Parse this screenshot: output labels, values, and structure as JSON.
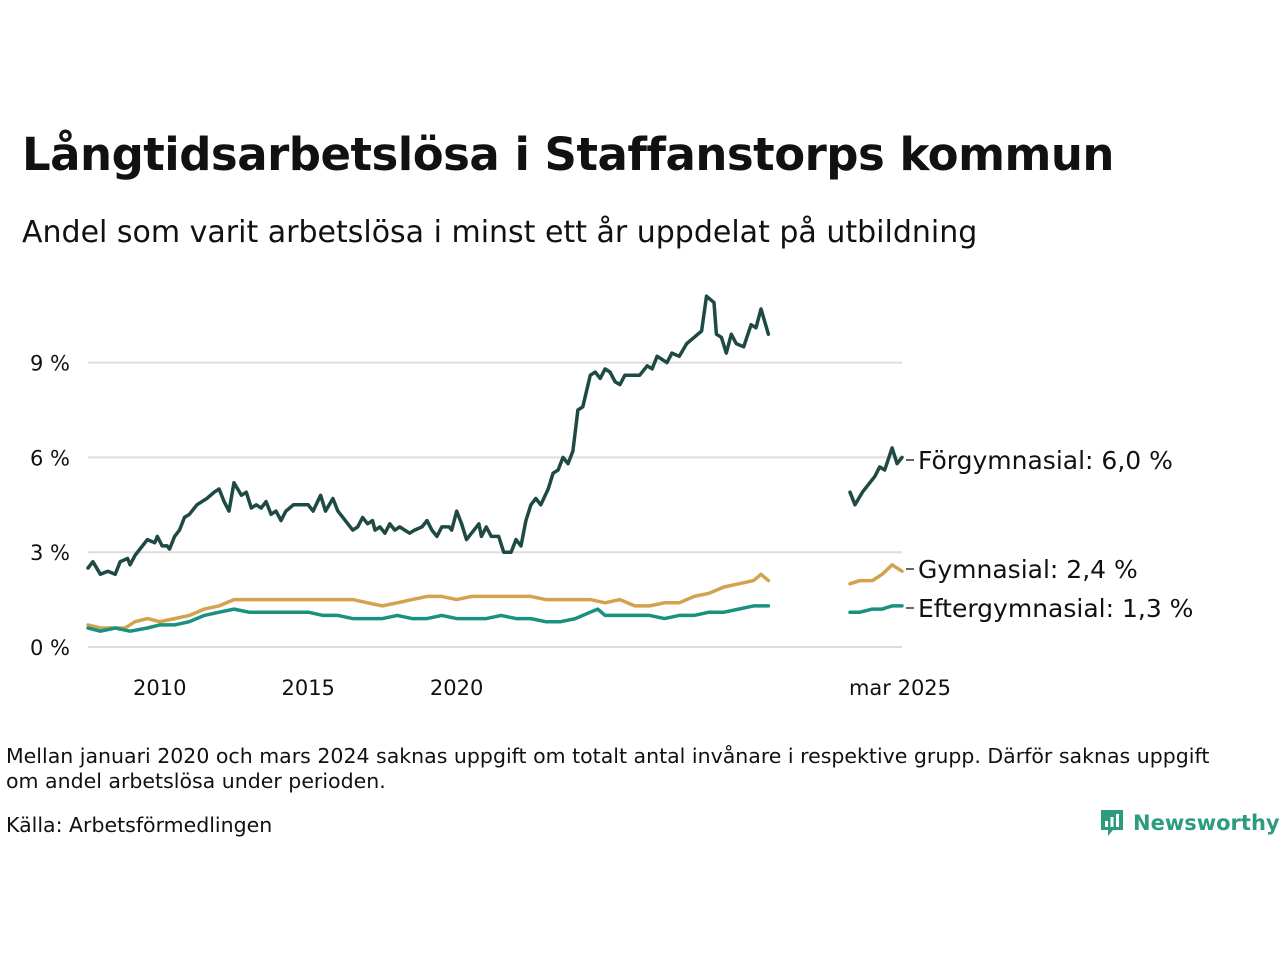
{
  "header": {
    "title": "Långtidsarbetslösa i Staffanstorps kommun",
    "subtitle": "Andel som varit arbetslösa i minst ett år uppdelat på utbildning"
  },
  "footer": {
    "note": "Mellan januari 2020 och mars 2024 saknas uppgift om totalt antal invånare i respektive grupp. Därför saknas uppgift om andel arbetslösa under perioden.",
    "source": "Källa: Arbetsförmedlingen",
    "logo_text": "Newsworthy",
    "logo_color": "#2c9c7c"
  },
  "chart_data": {
    "type": "line",
    "x_ticks": [
      "2010",
      "2015",
      "2020",
      "mar 2025"
    ],
    "y_ticks": [
      "0 %",
      "3 %",
      "6 %",
      "9 %"
    ],
    "y_tick_values": [
      0,
      3,
      6,
      9
    ],
    "ylim": [
      0,
      11.5
    ],
    "grid": true,
    "series": [
      {
        "name": "Förgymnasial",
        "end_label": "Förgymnasial: 6,0 %",
        "color": "#1f4a44",
        "points": [
          [
            "2008-01",
            2.5
          ],
          [
            "2008-03",
            2.7
          ],
          [
            "2008-06",
            2.3
          ],
          [
            "2008-09",
            2.4
          ],
          [
            "2008-12",
            2.3
          ],
          [
            "2009-02",
            2.7
          ],
          [
            "2009-05",
            2.8
          ],
          [
            "2009-06",
            2.6
          ],
          [
            "2009-08",
            2.9
          ],
          [
            "2009-10",
            3.1
          ],
          [
            "2010-01",
            3.4
          ],
          [
            "2010-04",
            3.3
          ],
          [
            "2010-05",
            3.5
          ],
          [
            "2010-07",
            3.2
          ],
          [
            "2010-09",
            3.2
          ],
          [
            "2010-10",
            3.1
          ],
          [
            "2010-12",
            3.5
          ],
          [
            "2011-02",
            3.7
          ],
          [
            "2011-04",
            4.1
          ],
          [
            "2011-06",
            4.2
          ],
          [
            "2011-09",
            4.5
          ],
          [
            "2012-01",
            4.7
          ],
          [
            "2012-04",
            4.9
          ],
          [
            "2012-06",
            5.0
          ],
          [
            "2012-08",
            4.6
          ],
          [
            "2012-10",
            4.3
          ],
          [
            "2012-12",
            5.2
          ],
          [
            "2013-03",
            4.8
          ],
          [
            "2013-05",
            4.9
          ],
          [
            "2013-07",
            4.4
          ],
          [
            "2013-09",
            4.5
          ],
          [
            "2013-11",
            4.4
          ],
          [
            "2014-01",
            4.6
          ],
          [
            "2014-03",
            4.2
          ],
          [
            "2014-05",
            4.3
          ],
          [
            "2014-07",
            4.0
          ],
          [
            "2014-09",
            4.3
          ],
          [
            "2014-12",
            4.5
          ],
          [
            "2015-03",
            4.5
          ],
          [
            "2015-06",
            4.5
          ],
          [
            "2015-08",
            4.3
          ],
          [
            "2015-11",
            4.8
          ],
          [
            "2016-01",
            4.3
          ],
          [
            "2016-04",
            4.7
          ],
          [
            "2016-06",
            4.3
          ],
          [
            "2016-09",
            4.0
          ],
          [
            "2016-12",
            3.7
          ],
          [
            "2017-02",
            3.8
          ],
          [
            "2017-04",
            4.1
          ],
          [
            "2017-06",
            3.9
          ],
          [
            "2017-08",
            4.0
          ],
          [
            "2017-09",
            3.7
          ],
          [
            "2017-11",
            3.8
          ],
          [
            "2018-01",
            3.6
          ],
          [
            "2018-03",
            3.9
          ],
          [
            "2018-05",
            3.7
          ],
          [
            "2018-07",
            3.8
          ],
          [
            "2018-09",
            3.7
          ],
          [
            "2018-11",
            3.6
          ],
          [
            "2019-01",
            3.7
          ],
          [
            "2019-04",
            3.8
          ],
          [
            "2019-06",
            4.0
          ],
          [
            "2019-08",
            3.7
          ],
          [
            "2019-10",
            3.5
          ],
          [
            "2019-12",
            3.8
          ],
          [
            "2020-03",
            3.8
          ],
          [
            "2020-04",
            3.7
          ],
          [
            "2020-06",
            4.3
          ],
          [
            "2020-08",
            3.9
          ],
          [
            "2020-10",
            3.4
          ],
          [
            "2021-01",
            3.7
          ],
          [
            "2021-03",
            3.9
          ],
          [
            "2021-04",
            3.5
          ],
          [
            "2021-06",
            3.8
          ],
          [
            "2021-08",
            3.5
          ],
          [
            "2021-11",
            3.5
          ],
          [
            "2022-01",
            3.0
          ],
          [
            "2022-04",
            3.0
          ],
          [
            "2022-06",
            3.4
          ],
          [
            "2022-08",
            3.2
          ],
          [
            "2022-10",
            4.0
          ],
          [
            "2022-12",
            4.5
          ],
          [
            "2023-02",
            4.7
          ],
          [
            "2023-04",
            4.5
          ],
          [
            "2023-07",
            5.0
          ],
          [
            "2023-09",
            5.5
          ],
          [
            "2023-11",
            5.6
          ],
          [
            "2024-01",
            6.0
          ],
          [
            "2024-03",
            5.8
          ],
          [
            "2024-05",
            6.2
          ],
          [
            "2024-07",
            7.5
          ],
          [
            "2024-09",
            7.6
          ],
          [
            "2024-12",
            8.6
          ],
          [
            "2025-02",
            8.7
          ],
          [
            "2025-04",
            8.5
          ],
          [
            "2025-06",
            8.8
          ],
          [
            "2025-08",
            8.7
          ],
          [
            "2025-10",
            8.4
          ],
          [
            "2025-12",
            8.3
          ],
          [
            "2026-02",
            8.6
          ],
          [
            "2026-05",
            8.6
          ],
          [
            "2026-08",
            8.6
          ],
          [
            "2026-11",
            8.9
          ],
          [
            "2027-01",
            8.8
          ],
          [
            "2027-03",
            9.2
          ],
          [
            "2027-05",
            9.1
          ],
          [
            "2027-07",
            9.0
          ],
          [
            "2027-09",
            9.3
          ],
          [
            "2027-12",
            9.2
          ],
          [
            "2028-03",
            9.6
          ],
          [
            "2028-06",
            9.8
          ],
          [
            "2028-09",
            10.0
          ],
          [
            "2028-11",
            11.1
          ],
          [
            "2029-02",
            10.9
          ],
          [
            "2029-03",
            9.9
          ],
          [
            "2029-05",
            9.8
          ],
          [
            "2029-07",
            9.3
          ],
          [
            "2029-09",
            9.9
          ],
          [
            "2029-11",
            9.6
          ],
          [
            "2030-02",
            9.5
          ],
          [
            "2030-05",
            10.2
          ],
          [
            "2030-07",
            10.1
          ],
          [
            "2030-09",
            10.7
          ],
          [
            "2030-12",
            9.9
          ],
          null,
          [
            "2033-09",
            4.9
          ],
          [
            "2033-11",
            4.5
          ],
          [
            "2034-02",
            4.9
          ],
          [
            "2034-04",
            5.1
          ],
          [
            "2034-07",
            5.4
          ],
          [
            "2034-09",
            5.7
          ],
          [
            "2034-11",
            5.6
          ],
          [
            "2035-02",
            6.3
          ],
          [
            "2035-04",
            5.8
          ],
          [
            "2035-06",
            6.0
          ]
        ]
      },
      {
        "name": "Gymnasial",
        "end_label": "Gymnasial: 2,4 %",
        "color": "#d3a24e",
        "points": [
          [
            "2008-01",
            0.7
          ],
          [
            "2008-06",
            0.6
          ],
          [
            "2008-12",
            0.6
          ],
          [
            "2009-04",
            0.6
          ],
          [
            "2009-08",
            0.8
          ],
          [
            "2010-01",
            0.9
          ],
          [
            "2010-06",
            0.8
          ],
          [
            "2010-12",
            0.9
          ],
          [
            "2011-06",
            1.0
          ],
          [
            "2011-12",
            1.2
          ],
          [
            "2012-06",
            1.3
          ],
          [
            "2012-12",
            1.5
          ],
          [
            "2013-04",
            1.5
          ],
          [
            "2013-08",
            1.5
          ],
          [
            "2014-01",
            1.5
          ],
          [
            "2014-06",
            1.5
          ],
          [
            "2014-12",
            1.5
          ],
          [
            "2015-06",
            1.5
          ],
          [
            "2015-12",
            1.5
          ],
          [
            "2016-06",
            1.5
          ],
          [
            "2016-12",
            1.5
          ],
          [
            "2017-06",
            1.4
          ],
          [
            "2017-12",
            1.3
          ],
          [
            "2018-06",
            1.4
          ],
          [
            "2018-12",
            1.5
          ],
          [
            "2019-06",
            1.6
          ],
          [
            "2019-12",
            1.6
          ],
          [
            "2020-06",
            1.5
          ],
          [
            "2020-12",
            1.6
          ],
          [
            "2021-06",
            1.6
          ],
          [
            "2021-12",
            1.6
          ],
          [
            "2022-06",
            1.6
          ],
          [
            "2022-12",
            1.6
          ],
          [
            "2023-06",
            1.5
          ],
          [
            "2023-12",
            1.5
          ],
          [
            "2024-06",
            1.5
          ],
          [
            "2024-12",
            1.5
          ],
          [
            "2025-06",
            1.4
          ],
          [
            "2025-12",
            1.5
          ],
          [
            "2026-06",
            1.3
          ],
          [
            "2026-12",
            1.3
          ],
          [
            "2027-06",
            1.4
          ],
          [
            "2027-12",
            1.4
          ],
          [
            "2028-06",
            1.6
          ],
          [
            "2028-12",
            1.7
          ],
          [
            "2029-06",
            1.9
          ],
          [
            "2029-12",
            2.0
          ],
          [
            "2030-06",
            2.1
          ],
          [
            "2030-09",
            2.3
          ],
          [
            "2030-12",
            2.1
          ],
          null,
          [
            "2033-09",
            2.0
          ],
          [
            "2034-01",
            2.1
          ],
          [
            "2034-06",
            2.1
          ],
          [
            "2034-10",
            2.3
          ],
          [
            "2035-02",
            2.6
          ],
          [
            "2035-06",
            2.4
          ]
        ]
      },
      {
        "name": "Eftergymnasial",
        "end_label": "Eftergymnasial: 1,3 %",
        "color": "#1a9180",
        "points": [
          [
            "2008-01",
            0.6
          ],
          [
            "2008-06",
            0.5
          ],
          [
            "2008-12",
            0.6
          ],
          [
            "2009-06",
            0.5
          ],
          [
            "2010-01",
            0.6
          ],
          [
            "2010-06",
            0.7
          ],
          [
            "2010-12",
            0.7
          ],
          [
            "2011-06",
            0.8
          ],
          [
            "2011-12",
            1.0
          ],
          [
            "2012-06",
            1.1
          ],
          [
            "2012-12",
            1.2
          ],
          [
            "2013-06",
            1.1
          ],
          [
            "2013-12",
            1.1
          ],
          [
            "2014-06",
            1.1
          ],
          [
            "2014-12",
            1.1
          ],
          [
            "2015-06",
            1.1
          ],
          [
            "2015-12",
            1.0
          ],
          [
            "2016-06",
            1.0
          ],
          [
            "2016-12",
            0.9
          ],
          [
            "2017-06",
            0.9
          ],
          [
            "2017-12",
            0.9
          ],
          [
            "2018-06",
            1.0
          ],
          [
            "2018-12",
            0.9
          ],
          [
            "2019-06",
            0.9
          ],
          [
            "2019-12",
            1.0
          ],
          [
            "2020-06",
            0.9
          ],
          [
            "2020-12",
            0.9
          ],
          [
            "2021-06",
            0.9
          ],
          [
            "2021-12",
            1.0
          ],
          [
            "2022-06",
            0.9
          ],
          [
            "2022-12",
            0.9
          ],
          [
            "2023-06",
            0.8
          ],
          [
            "2023-12",
            0.8
          ],
          [
            "2024-06",
            0.9
          ],
          [
            "2024-12",
            1.1
          ],
          [
            "2025-03",
            1.2
          ],
          [
            "2025-06",
            1.0
          ],
          [
            "2025-12",
            1.0
          ],
          [
            "2026-06",
            1.0
          ],
          [
            "2026-12",
            1.0
          ],
          [
            "2027-06",
            0.9
          ],
          [
            "2027-12",
            1.0
          ],
          [
            "2028-06",
            1.0
          ],
          [
            "2028-12",
            1.1
          ],
          [
            "2029-06",
            1.1
          ],
          [
            "2029-12",
            1.2
          ],
          [
            "2030-06",
            1.3
          ],
          [
            "2030-12",
            1.3
          ],
          null,
          [
            "2033-09",
            1.1
          ],
          [
            "2034-01",
            1.1
          ],
          [
            "2034-06",
            1.2
          ],
          [
            "2034-10",
            1.2
          ],
          [
            "2035-02",
            1.3
          ],
          [
            "2035-06",
            1.3
          ]
        ]
      }
    ]
  }
}
